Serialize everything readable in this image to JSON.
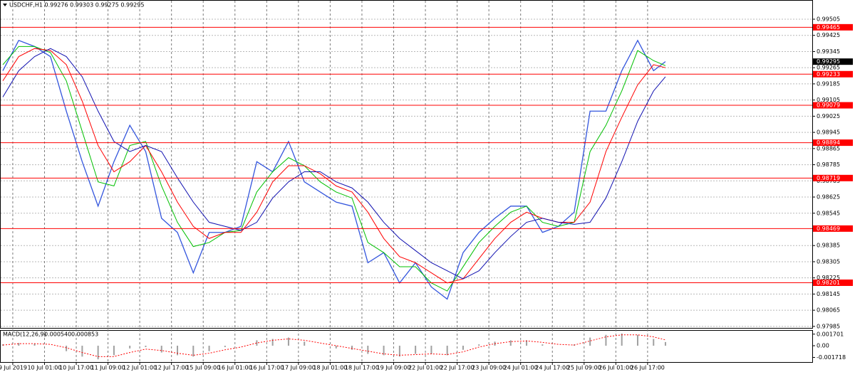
{
  "chart_data": [
    {
      "type": "line",
      "title": "USDCHF,H1  0.99276 0.99303 0.99275 0.99295",
      "x": [
        0,
        8,
        16,
        24,
        32,
        40,
        48,
        56,
        64,
        72,
        80,
        88,
        96,
        104,
        112,
        120,
        128,
        136,
        144,
        152,
        160,
        168,
        176,
        184,
        192,
        200,
        208,
        216,
        224,
        232,
        240,
        248,
        256,
        264,
        272,
        280,
        288,
        296,
        304,
        312,
        320,
        328,
        334
      ],
      "xlim": [
        0,
        408
      ],
      "xticks": [
        {
          "value": 5,
          "label": "9 Jul 2019"
        },
        {
          "value": 21,
          "label": "10 Jul 01:00"
        },
        {
          "value": 37,
          "label": "10 Jul 17:00"
        },
        {
          "value": 53,
          "label": "11 Jul 09:00"
        },
        {
          "value": 69,
          "label": "12 Jul 01:00"
        },
        {
          "value": 85,
          "label": "12 Jul 17:00"
        },
        {
          "value": 101,
          "label": "15 Jul 09:00"
        },
        {
          "value": 117,
          "label": "16 Jul 01:00"
        },
        {
          "value": 133,
          "label": "16 Jul 17:00"
        },
        {
          "value": 149,
          "label": "17 Jul 09:00"
        },
        {
          "value": 165,
          "label": "18 Jul 01:00"
        },
        {
          "value": 181,
          "label": "18 Jul 17:00"
        },
        {
          "value": 197,
          "label": "19 Jul 09:00"
        },
        {
          "value": 213,
          "label": "22 Jul 01:00"
        },
        {
          "value": 229,
          "label": "22 Jul 17:00"
        },
        {
          "value": 245,
          "label": "23 Jul 09:00"
        },
        {
          "value": 261,
          "label": "24 Jul 01:00"
        },
        {
          "value": 277,
          "label": "24 Jul 17:00"
        },
        {
          "value": 293,
          "label": "25 Jul 09:00"
        },
        {
          "value": 309,
          "label": "26 Jul 01:00"
        },
        {
          "value": 325,
          "label": "26 Jul 17:00"
        }
      ],
      "ylim": [
        0.97974,
        0.996
      ],
      "yticks": [
        0.99505,
        0.99425,
        0.99345,
        0.99265,
        0.99185,
        0.99105,
        0.99025,
        0.98945,
        0.98865,
        0.98785,
        0.98705,
        0.98625,
        0.98545,
        0.98385,
        0.98305,
        0.98225,
        0.98145,
        0.98065,
        0.97985
      ],
      "grid": true,
      "series": [
        {
          "color": "#3355dd",
          "values": [
            0.9925,
            0.994,
            0.9937,
            0.9932,
            0.9905,
            0.988,
            0.9858,
            0.988,
            0.9898,
            0.9885,
            0.9852,
            0.9845,
            0.9825,
            0.9845,
            0.9845,
            0.9848,
            0.988,
            0.9875,
            0.989,
            0.987,
            0.9865,
            0.986,
            0.9858,
            0.983,
            0.9835,
            0.982,
            0.983,
            0.9818,
            0.9812,
            0.9835,
            0.9845,
            0.9852,
            0.9858,
            0.9858,
            0.9845,
            0.9848,
            0.9855,
            0.9905,
            0.9905,
            0.9925,
            0.994,
            0.9925,
            0.99295
          ]
        },
        {
          "color": "#00c000",
          "values": [
            0.9928,
            0.9937,
            0.9937,
            0.9934,
            0.992,
            0.9895,
            0.987,
            0.9868,
            0.9888,
            0.989,
            0.9868,
            0.985,
            0.9838,
            0.984,
            0.9845,
            0.9846,
            0.9865,
            0.9875,
            0.9882,
            0.9878,
            0.987,
            0.9865,
            0.9862,
            0.984,
            0.9835,
            0.9828,
            0.9828,
            0.982,
            0.9816,
            0.9828,
            0.984,
            0.9848,
            0.9855,
            0.9858,
            0.985,
            0.9848,
            0.985,
            0.9885,
            0.9898,
            0.9915,
            0.9935,
            0.993,
            0.99275
          ]
        },
        {
          "color": "#ff0000",
          "values": [
            0.992,
            0.9932,
            0.9936,
            0.9935,
            0.9928,
            0.991,
            0.9888,
            0.9875,
            0.988,
            0.9888,
            0.9875,
            0.986,
            0.9848,
            0.9842,
            0.9845,
            0.9845,
            0.9855,
            0.987,
            0.9878,
            0.9878,
            0.9874,
            0.9868,
            0.9865,
            0.9855,
            0.9842,
            0.9833,
            0.983,
            0.9825,
            0.982,
            0.9822,
            0.9832,
            0.9842,
            0.985,
            0.9855,
            0.9852,
            0.985,
            0.985,
            0.986,
            0.9885,
            0.9902,
            0.9918,
            0.9928,
            0.99265
          ]
        },
        {
          "color": "#1010b0",
          "values": [
            0.9912,
            0.9925,
            0.9932,
            0.9936,
            0.9932,
            0.9922,
            0.9905,
            0.989,
            0.9885,
            0.9888,
            0.9885,
            0.9872,
            0.986,
            0.985,
            0.9848,
            0.9846,
            0.985,
            0.9862,
            0.987,
            0.9875,
            0.9875,
            0.987,
            0.9867,
            0.986,
            0.985,
            0.9842,
            0.9836,
            0.983,
            0.9826,
            0.9822,
            0.9826,
            0.9835,
            0.9843,
            0.985,
            0.9852,
            0.985,
            0.9849,
            0.985,
            0.9862,
            0.988,
            0.99,
            0.9915,
            0.9922
          ]
        }
      ],
      "levels": [
        0.99465,
        0.99233,
        0.99079,
        0.98894,
        0.98719,
        0.98469,
        0.98201
      ],
      "level_color": "#ff0000",
      "current_price": 0.99295
    },
    {
      "type": "macd",
      "title": "MACD(12,26,9)",
      "indicator_values": [
        {
          "value": 0.00054,
          "label": "0.000540"
        },
        {
          "value": 0.000853,
          "label": "0.000853"
        }
      ],
      "ylim": [
        -0.0024,
        0.0022
      ],
      "yticks": [
        0.001701,
        {
          "value": 0,
          "label": "0.00"
        },
        -0.001718
      ],
      "series": [
        {
          "color": "#a0a0a0",
          "values": [
            0.0002,
            0.0004,
            0.0003,
            0,
            -0.0008,
            -0.0016,
            -0.002,
            -0.0014,
            -0.0004,
            -0.0002,
            -0.001,
            -0.0014,
            -0.0016,
            -0.0008,
            -0.0002,
            0,
            0.0008,
            0.001,
            0.0012,
            0.0006,
            0,
            -0.0004,
            -0.0006,
            -0.0012,
            -0.0014,
            -0.0016,
            -0.0012,
            -0.0012,
            -0.0014,
            -0.0006,
            0.0002,
            0.0006,
            0.0008,
            0.0008,
            0.0002,
            0,
            0.0002,
            0.0012,
            0.0016,
            0.0018,
            0.0016,
            0.001,
            0.00054
          ]
        },
        {
          "color": "#ff0000",
          "values": [
            0.0001,
            0.0003,
            0.0003,
            0.0002,
            -0.0003,
            -0.001,
            -0.0016,
            -0.0016,
            -0.001,
            -0.0005,
            -0.0007,
            -0.0011,
            -0.0014,
            -0.0011,
            -0.0006,
            -0.0002,
            0.0004,
            0.0008,
            0.001,
            0.0008,
            0.0004,
            0,
            -0.0004,
            -0.0008,
            -0.0012,
            -0.0014,
            -0.0013,
            -0.0012,
            -0.0013,
            -0.0009,
            -0.0002,
            0.0003,
            0.0006,
            0.0007,
            0.0005,
            0.0002,
            0.0001,
            0.0007,
            0.0013,
            0.0016,
            0.0016,
            0.0013,
            0.000853
          ]
        }
      ]
    }
  ]
}
